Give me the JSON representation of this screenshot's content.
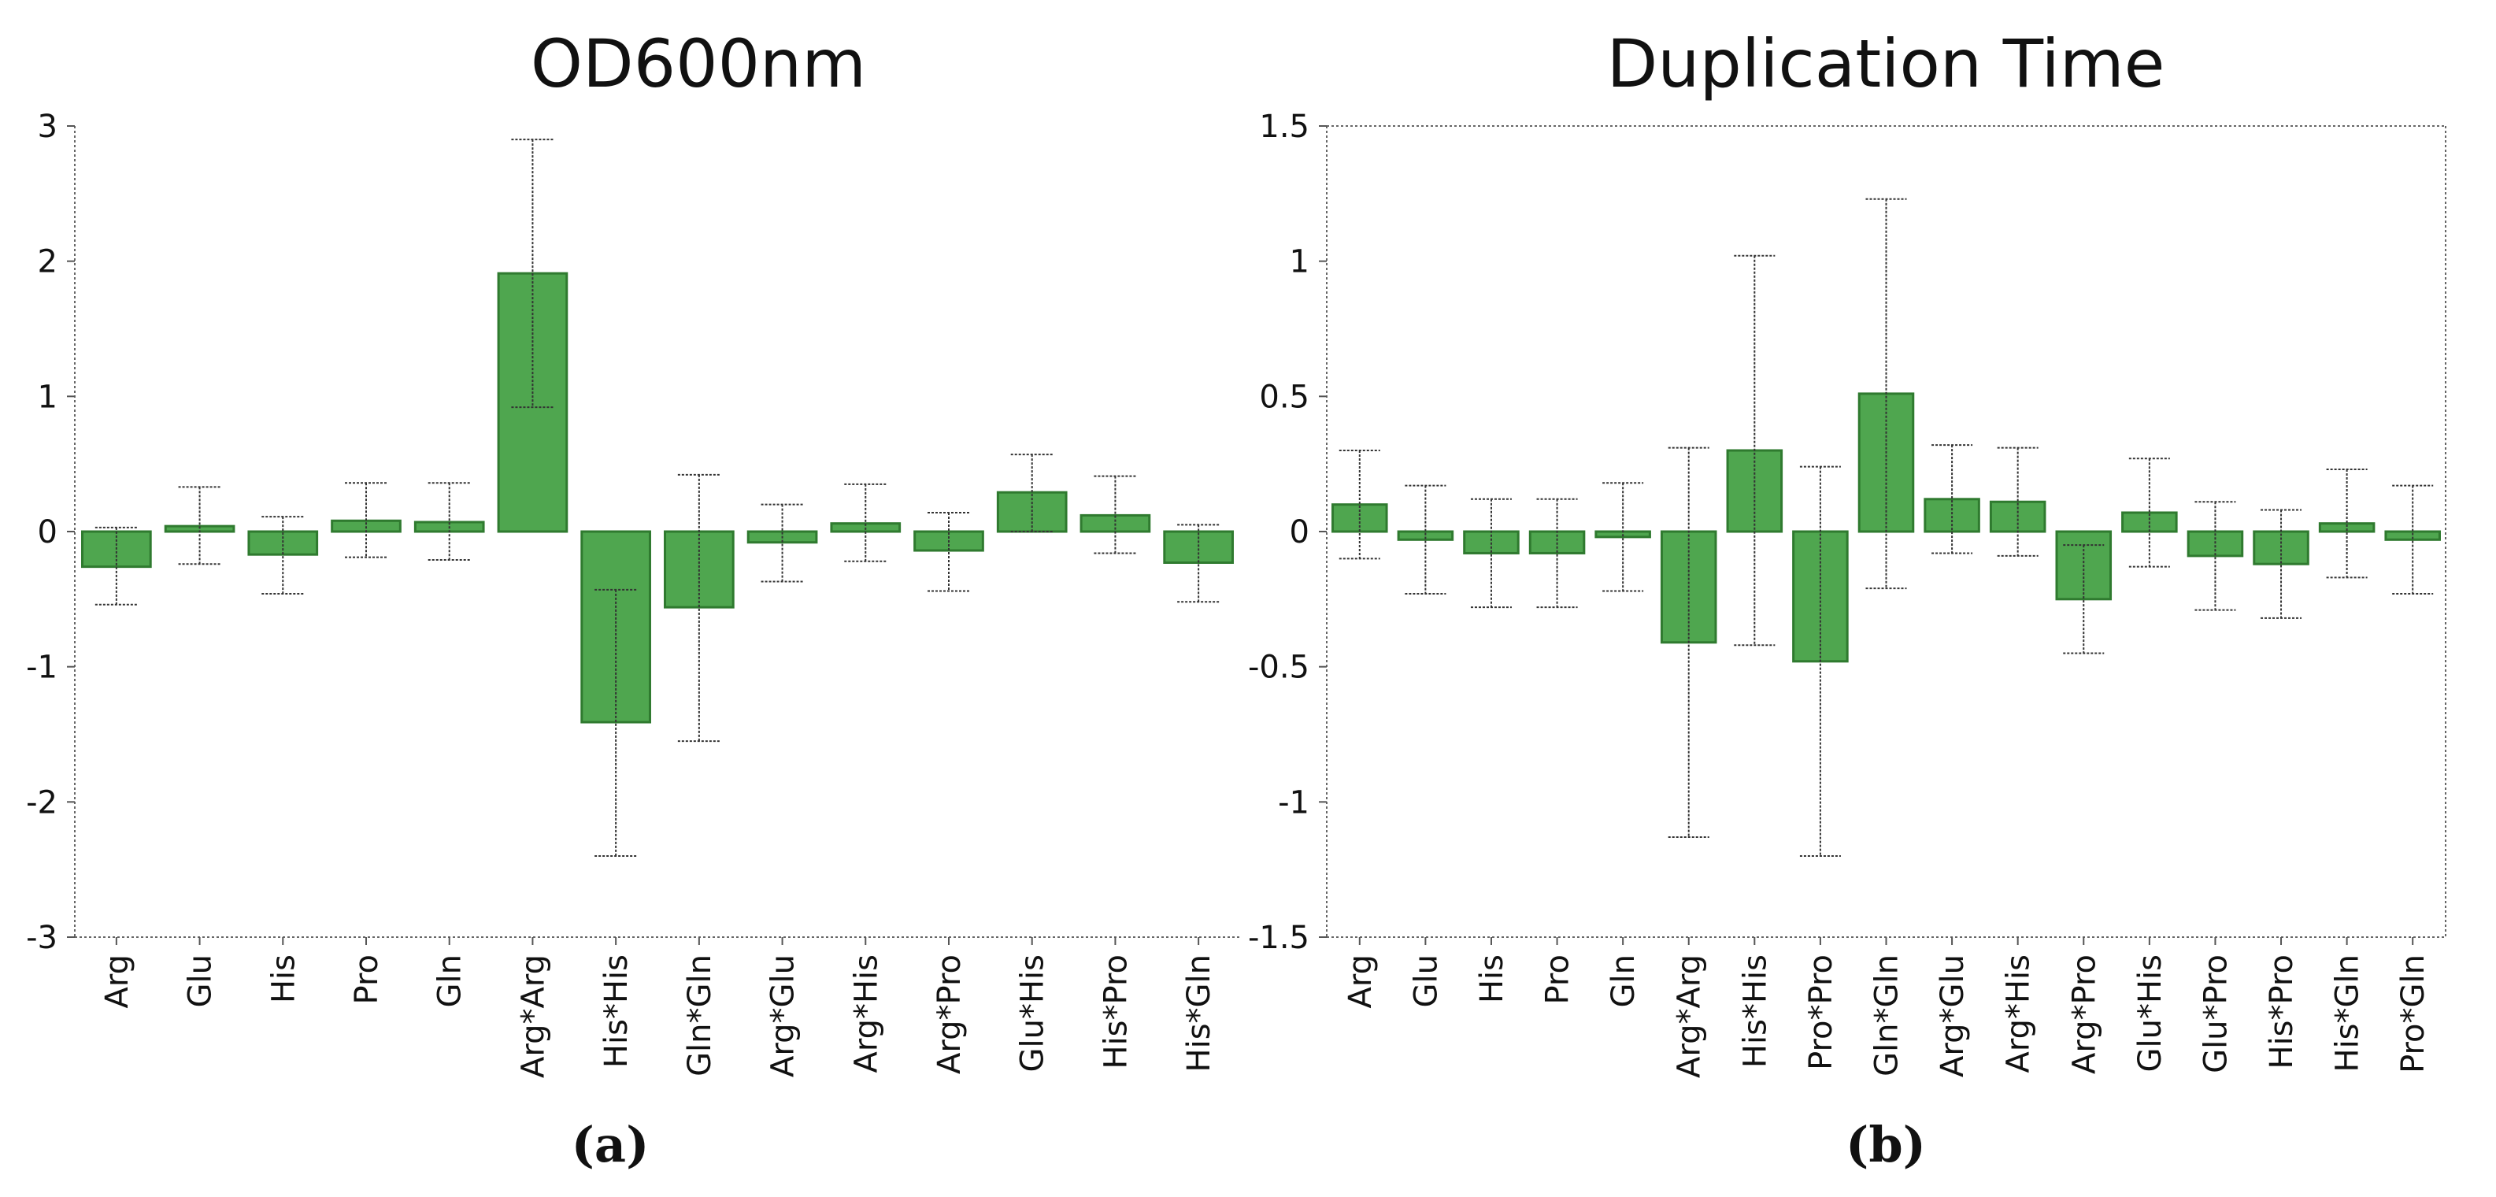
{
  "chart_data": [
    {
      "type": "bar",
      "title": "OD600nm",
      "caption": "(a)",
      "xlabel": "",
      "ylabel": "",
      "ylim": [
        -3,
        3
      ],
      "yticks": [
        -3,
        -2,
        -1,
        0,
        1,
        2,
        3
      ],
      "ytick_labels": [
        "-3",
        "-2",
        "-1",
        "0",
        "1",
        "2",
        "3"
      ],
      "categories": [
        "Arg",
        "Glu",
        "His",
        "Pro",
        "Gln",
        "Arg*Arg",
        "His*His",
        "Gln*Gln",
        "Arg*Glu",
        "Arg*His",
        "Arg*Pro",
        "Glu*His",
        "His*Pro",
        "His*Gln"
      ],
      "values": [
        -0.26,
        0.04,
        -0.17,
        0.08,
        0.07,
        1.91,
        -1.41,
        -0.56,
        -0.08,
        0.06,
        -0.14,
        0.29,
        0.12,
        -0.23
      ],
      "err_low": [
        -0.54,
        -0.24,
        -0.46,
        -0.19,
        -0.21,
        0.92,
        -2.4,
        -1.55,
        -0.37,
        -0.22,
        -0.44,
        0.0,
        -0.16,
        -0.52
      ],
      "err_high": [
        0.03,
        0.33,
        0.11,
        0.36,
        0.36,
        2.9,
        -0.43,
        0.42,
        0.2,
        0.35,
        0.14,
        0.57,
        0.41,
        0.05
      ],
      "color": "#4fa64f",
      "edge_color": "#2f7a2f"
    },
    {
      "type": "bar",
      "title": "Duplication Time",
      "caption": "(b)",
      "xlabel": "",
      "ylabel": "",
      "ylim": [
        -1.5,
        1.5
      ],
      "yticks": [
        -1.5,
        -1,
        -0.5,
        0,
        0.5,
        1,
        1.5
      ],
      "ytick_labels": [
        "-1.5",
        "-1",
        "-0.5",
        "0",
        "0.5",
        "1",
        "1.5"
      ],
      "categories": [
        "Arg",
        "Glu",
        "His",
        "Pro",
        "Gln",
        "Arg*Arg",
        "His*His",
        "Pro*Pro",
        "Gln*Gln",
        "Arg*Glu",
        "Arg*His",
        "Arg*Pro",
        "Glu*His",
        "Glu*Pro",
        "His*Pro",
        "His*Gln",
        "Pro*Gln"
      ],
      "values": [
        0.1,
        -0.03,
        -0.08,
        -0.08,
        -0.02,
        -0.41,
        0.3,
        -0.48,
        0.51,
        0.12,
        0.11,
        -0.25,
        0.07,
        -0.09,
        -0.12,
        0.03,
        -0.03
      ],
      "err_low": [
        -0.1,
        -0.23,
        -0.28,
        -0.28,
        -0.22,
        -1.13,
        -0.42,
        -1.2,
        -0.21,
        -0.08,
        -0.09,
        -0.45,
        -0.13,
        -0.29,
        -0.32,
        -0.17,
        -0.23
      ],
      "err_high": [
        0.3,
        0.17,
        0.12,
        0.12,
        0.18,
        0.31,
        1.02,
        0.24,
        1.23,
        0.32,
        0.31,
        -0.05,
        0.27,
        0.11,
        0.08,
        0.23,
        0.17
      ],
      "color": "#4fa64f",
      "edge_color": "#2f7a2f"
    }
  ]
}
